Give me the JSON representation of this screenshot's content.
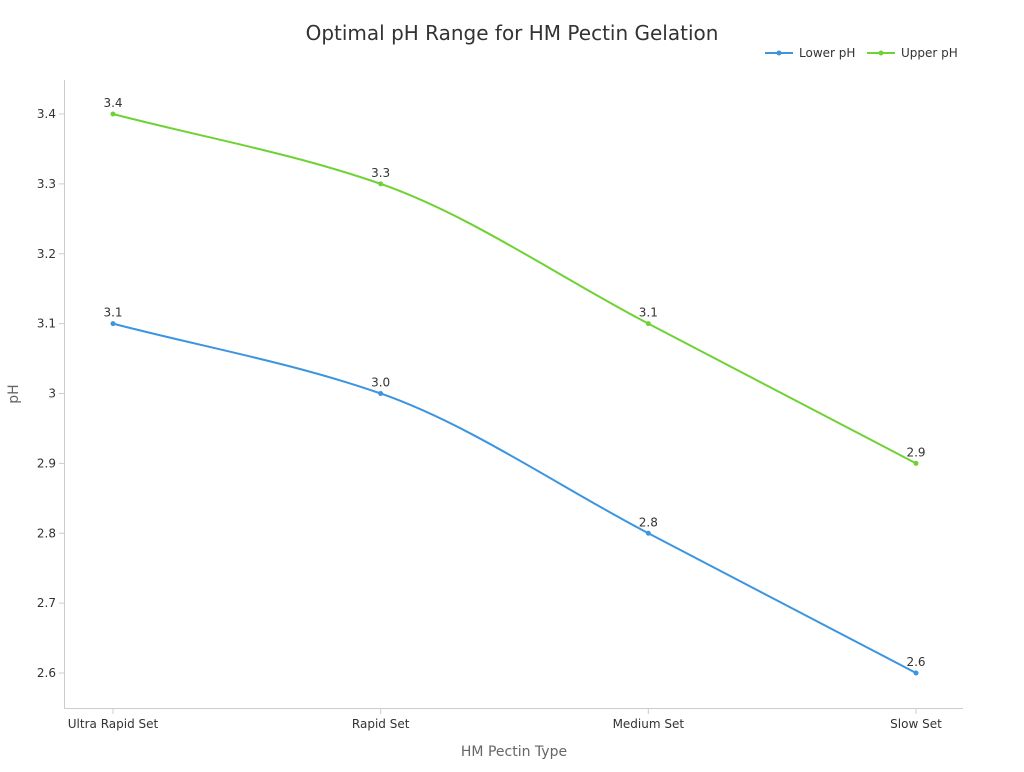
{
  "chart_data": {
    "type": "line",
    "title": "Optimal pH Range for HM Pectin Gelation",
    "xlabel": "HM Pectin Type",
    "ylabel": "pH",
    "categories": [
      "Ultra Rapid Set",
      "Rapid Set",
      "Medium Set",
      "Slow Set"
    ],
    "ylim": [
      2.55,
      3.45
    ],
    "yticks": [
      2.6,
      2.7,
      2.8,
      2.9,
      3,
      3.1,
      3.2,
      3.3,
      3.4
    ],
    "ytick_labels": [
      "2.6",
      "2.7",
      "2.8",
      "2.9",
      "3",
      "3.1",
      "3.2",
      "3.3",
      "3.4"
    ],
    "grid": false,
    "legend_position": "top-right",
    "series": [
      {
        "name": "Lower pH",
        "color": "#3b95e0",
        "values": [
          3.1,
          3.0,
          2.8,
          2.6
        ],
        "data_labels": [
          "3.1",
          "3.0",
          "2.8",
          "2.6"
        ]
      },
      {
        "name": "Upper pH",
        "color": "#6fd234",
        "values": [
          3.4,
          3.3,
          3.1,
          2.9
        ],
        "data_labels": [
          "3.4",
          "3.3",
          "3.1",
          "2.9"
        ]
      }
    ]
  }
}
